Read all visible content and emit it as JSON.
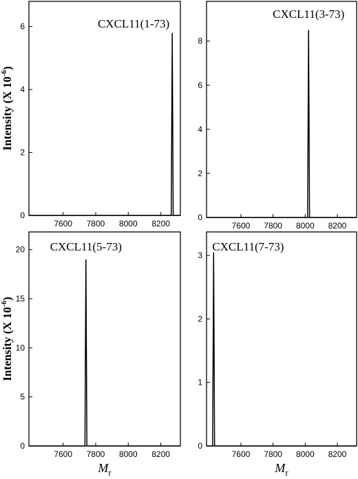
{
  "chart_data": [
    {
      "type": "line",
      "annotation": "CXCL11(1-73)",
      "y_label": "Intensity (X 10",
      "y_label_sup": "-6",
      "y_label_end": ")",
      "x": [
        7390,
        8264,
        8270,
        8276,
        8320
      ],
      "series": [
        {
          "color": "#000000",
          "values": [
            0,
            0,
            5.8,
            0,
            0
          ]
        }
      ],
      "xlim": [
        7390,
        8320
      ],
      "ylim": [
        0,
        6.8
      ],
      "xticks": [
        7600,
        7800,
        8000,
        8200
      ],
      "yticks": [
        0,
        2,
        4,
        6
      ]
    },
    {
      "type": "line",
      "annotation": "CXCL11(3-73)",
      "x": [
        7386,
        8015,
        8021,
        8027,
        8320
      ],
      "series": [
        {
          "color": "#000000",
          "values": [
            0,
            0,
            8.5,
            0,
            0
          ]
        }
      ],
      "xlim": [
        7386,
        8320
      ],
      "ylim": [
        0,
        9.8
      ],
      "xticks": [
        7600,
        7800,
        8000,
        8200
      ],
      "yticks": [
        0,
        2,
        4,
        6,
        8
      ]
    },
    {
      "type": "line",
      "annotation": "CXCL11(5-73)",
      "y_label": "Intensity (X 10",
      "y_label_sup": "-6",
      "y_label_end": ")",
      "x_label": "M",
      "x_label_sub": "r",
      "x": [
        7390,
        7734,
        7740,
        7746,
        8320
      ],
      "series": [
        {
          "color": "#000000",
          "values": [
            0,
            0,
            19,
            0,
            0
          ]
        }
      ],
      "xlim": [
        7390,
        8320
      ],
      "ylim": [
        0,
        21.8
      ],
      "xticks": [
        7600,
        7800,
        8000,
        8200
      ],
      "yticks": [
        0,
        5,
        10,
        15,
        20
      ]
    },
    {
      "type": "line",
      "annotation": "CXCL11(7-73)",
      "x_label": "M",
      "x_label_sub": "r",
      "x": [
        7386,
        7424,
        7430,
        7436,
        8320
      ],
      "series": [
        {
          "color": "#000000",
          "values": [
            0,
            0,
            3.05,
            0,
            0
          ]
        }
      ],
      "xlim": [
        7386,
        8320
      ],
      "ylim": [
        0,
        3.37
      ],
      "xticks": [
        7600,
        7800,
        8000,
        8200
      ],
      "yticks": [
        0,
        1,
        2,
        3
      ]
    }
  ]
}
